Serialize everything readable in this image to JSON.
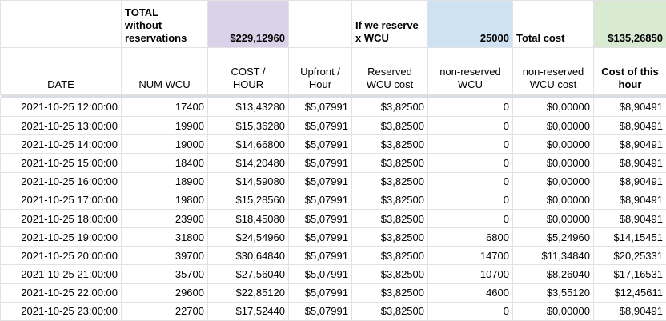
{
  "table": {
    "colors": {
      "purple_highlight": "#d9d2e9",
      "blue_highlight": "#cfe2f3",
      "green_highlight": "#d9ead3",
      "gridline": "#e2e2e2",
      "frozen_divider": "#d8dde6"
    },
    "header_row1": {
      "total_without_reservations_label": "TOTAL\nwithout\nreservations",
      "total_without_reservations_value": "$229,12960",
      "if_we_reserve_label": "If we reserve\nx WCU",
      "if_we_reserve_value": "25000",
      "total_cost_label": "Total cost",
      "total_cost_value": "$135,26850"
    },
    "header_row2": {
      "columns": [
        "DATE",
        "NUM WCU",
        "COST /\nHOUR",
        "Upfront /\nHour",
        "Reserved\nWCU cost",
        "non-reserved\nWCU",
        "non-reserved\nWCU cost",
        "Cost of this\nhour"
      ]
    },
    "rows": [
      [
        "2021-10-25 12:00:00",
        "17400",
        "$13,43280",
        "$5,07991",
        "$3,82500",
        "0",
        "$0,00000",
        "$8,90491"
      ],
      [
        "2021-10-25 13:00:00",
        "19900",
        "$15,36280",
        "$5,07991",
        "$3,82500",
        "0",
        "$0,00000",
        "$8,90491"
      ],
      [
        "2021-10-25 14:00:00",
        "19000",
        "$14,66800",
        "$5,07991",
        "$3,82500",
        "0",
        "$0,00000",
        "$8,90491"
      ],
      [
        "2021-10-25 15:00:00",
        "18400",
        "$14,20480",
        "$5,07991",
        "$3,82500",
        "0",
        "$0,00000",
        "$8,90491"
      ],
      [
        "2021-10-25 16:00:00",
        "18900",
        "$14,59080",
        "$5,07991",
        "$3,82500",
        "0",
        "$0,00000",
        "$8,90491"
      ],
      [
        "2021-10-25 17:00:00",
        "19800",
        "$15,28560",
        "$5,07991",
        "$3,82500",
        "0",
        "$0,00000",
        "$8,90491"
      ],
      [
        "2021-10-25 18:00:00",
        "23900",
        "$18,45080",
        "$5,07991",
        "$3,82500",
        "0",
        "$0,00000",
        "$8,90491"
      ],
      [
        "2021-10-25 19:00:00",
        "31800",
        "$24,54960",
        "$5,07991",
        "$3,82500",
        "6800",
        "$5,24960",
        "$14,15451"
      ],
      [
        "2021-10-25 20:00:00",
        "39700",
        "$30,64840",
        "$5,07991",
        "$3,82500",
        "14700",
        "$11,34840",
        "$20,25331"
      ],
      [
        "2021-10-25 21:00:00",
        "35700",
        "$27,56040",
        "$5,07991",
        "$3,82500",
        "10700",
        "$8,26040",
        "$17,16531"
      ],
      [
        "2021-10-25 22:00:00",
        "29600",
        "$22,85120",
        "$5,07991",
        "$3,82500",
        "4600",
        "$3,55120",
        "$12,45611"
      ],
      [
        "2021-10-25 23:00:00",
        "22700",
        "$17,52440",
        "$5,07991",
        "$3,82500",
        "0",
        "$0,00000",
        "$8,90491"
      ]
    ]
  }
}
